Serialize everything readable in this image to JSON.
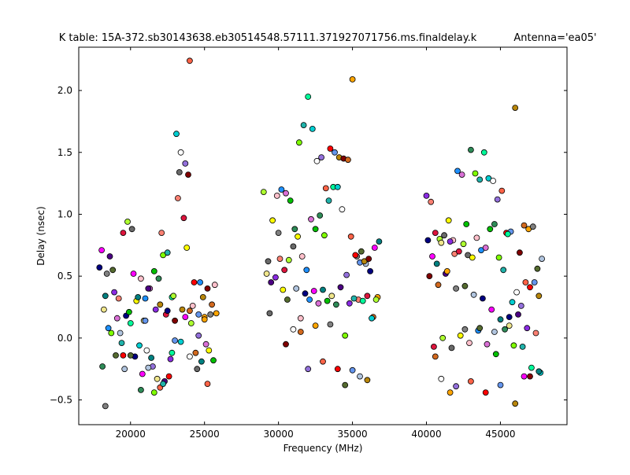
{
  "chart_data": {
    "type": "scatter",
    "title": "K table: 15A-372.sb30143638.eb30514548.57111.371927071756.ms.finaldelay.k",
    "title_right": "Antenna='ea05'",
    "xlabel": "Frequency (MHz)",
    "ylabel": "Delay (nsec)",
    "xlim": [
      16500,
      49500
    ],
    "ylim": [
      -0.7,
      2.35
    ],
    "x_ticks": [
      20000,
      25000,
      30000,
      35000,
      40000,
      45000
    ],
    "x_tick_labels": [
      "20000",
      "25000",
      "30000",
      "35000",
      "40000",
      "45000"
    ],
    "y_ticks": [
      -0.5,
      0.0,
      0.5,
      1.0,
      1.5,
      2.0
    ],
    "y_tick_labels": [
      "−0.5",
      "0.0",
      "0.5",
      "1.0",
      "1.5",
      "2.0"
    ],
    "grid": false,
    "legend": "none",
    "marker": "circle",
    "marker_edge_color": "#000000",
    "palette": [
      "#000080",
      "#ff0000",
      "#00c000",
      "#8a2be2",
      "#ffa500",
      "#00ced1",
      "#ffff00",
      "#ff00ff",
      "#6495ed",
      "#2e8b57",
      "#fa8072",
      "#808080",
      "#ffffff",
      "#ffc0cb",
      "#008080",
      "#b8860b",
      "#7fff00",
      "#dc143c",
      "#556b2f",
      "#9370db",
      "#1e90ff",
      "#f0e68c",
      "#800000",
      "#20b2aa",
      "#adff2f",
      "#b0c4de",
      "#ff6347",
      "#da70d6",
      "#4b0082",
      "#d2691e",
      "#00fa9a",
      "#696969"
    ],
    "series": [
      {
        "x": [
          17900,
          18050,
          18300,
          18200,
          18600,
          18900,
          19200,
          19500,
          19800,
          20100,
          20400,
          20700,
          21000,
          21300,
          21600,
          21900,
          22200,
          22500,
          22800,
          23100,
          23400,
          23700,
          24000,
          24300,
          24600,
          24900,
          25200,
          25500,
          25800,
          18400,
          18800,
          19300,
          19700,
          20200,
          20500,
          20900,
          21200,
          21700,
          22100,
          22400,
          22900,
          23300,
          23800,
          24200,
          24700,
          25100,
          25600,
          18100,
          18700,
          19400,
          20000,
          20600,
          21100,
          21500,
          22000,
          22600,
          23000,
          23500,
          23900,
          24400,
          25000,
          25400,
          19000,
          19600,
          20300,
          20800,
          21400,
          21800,
          22300,
          22700,
          23200,
          23600,
          24100,
          24500,
          25300,
          25700,
          18500,
          19100,
          19900,
          20700,
          21600,
          22200,
          22800,
          23400,
          24000,
          24600,
          25200,
          19500,
          21000,
          22000,
          23000,
          24000,
          25000,
          18300,
          20000,
          21200,
          22500,
          23700,
          24800
        ],
        "y": [
          0.57,
          0.71,
          0.34,
          0.23,
          0.66,
          0.37,
          0.32,
          0.85,
          0.94,
          0.88,
          0.3,
          0.48,
          0.32,
          0.4,
          0.54,
          0.48,
          0.67,
          0.69,
          0.33,
          1.65,
          1.5,
          1.41,
          2.24,
          0.45,
          0.19,
          0.33,
          0.4,
          0.27,
          0.2,
          0.52,
          0.55,
          0.04,
          0.18,
          0.52,
          0.33,
          0.14,
          0.4,
          0.23,
          0.85,
          0.19,
          0.34,
          1.34,
          0.73,
          0.26,
          0.45,
          -0.05,
          -0.18,
          -0.23,
          0.04,
          -0.04,
          0.12,
          -0.06,
          -0.1,
          -0.23,
          -0.4,
          -0.31,
          -0.02,
          0.23,
          1.32,
          -0.12,
          0.17,
          0.19,
          -0.14,
          -0.25,
          -0.15,
          -0.29,
          -0.16,
          -0.33,
          -0.35,
          -0.17,
          1.13,
          0.97,
          0.12,
          -0.25,
          -0.1,
          0.43,
          0.08,
          0.16,
          0.21,
          -0.42,
          -0.44,
          -0.37,
          -0.12,
          -0.03,
          -0.15,
          0.02,
          -0.37,
          -0.14,
          0.14,
          0.27,
          0.14,
          0.22,
          0.15,
          -0.55,
          -0.14,
          -0.24,
          0.22,
          0.17,
          -0.19
        ]
      },
      {
        "x": [
          29000,
          29300,
          29600,
          29900,
          30200,
          30500,
          30800,
          31100,
          31400,
          31700,
          32000,
          32300,
          32600,
          32900,
          33200,
          33500,
          33800,
          34100,
          34400,
          34700,
          35000,
          35300,
          35600,
          35900,
          36200,
          36500,
          36800,
          29200,
          29500,
          29800,
          30100,
          30400,
          30700,
          31000,
          31300,
          31600,
          31900,
          32200,
          32500,
          32800,
          33100,
          33400,
          33700,
          34000,
          34300,
          34600,
          34900,
          35200,
          35500,
          35800,
          36100,
          36400,
          36700,
          30000,
          30600,
          31200,
          31800,
          32400,
          33000,
          33600,
          34200,
          34800,
          35400,
          36000,
          36600,
          29400,
          30300,
          31500,
          32100,
          32700,
          33300,
          33900,
          34500,
          35100,
          35700,
          36300,
          31000,
          32000,
          33000,
          34000,
          35000,
          36000,
          30500,
          31500,
          32500,
          33500,
          34500,
          35500
        ],
        "y": [
          1.18,
          0.62,
          0.95,
          1.15,
          1.2,
          1.17,
          1.11,
          0.88,
          1.58,
          1.72,
          1.95,
          1.69,
          1.43,
          1.46,
          1.21,
          1.53,
          1.5,
          1.46,
          1.45,
          1.44,
          2.09,
          0.66,
          0.7,
          0.6,
          0.54,
          0.73,
          0.78,
          0.52,
          0.45,
          0.49,
          0.64,
          0.55,
          0.63,
          0.74,
          0.82,
          0.66,
          0.55,
          0.96,
          0.88,
          0.99,
          0.83,
          1.11,
          1.22,
          1.22,
          1.04,
          0.51,
          0.82,
          0.67,
          0.61,
          0.62,
          0.64,
          0.17,
          0.33,
          0.85,
          0.31,
          0.4,
          0.36,
          0.38,
          0.39,
          0.34,
          0.41,
          0.28,
          0.31,
          0.34,
          0.31,
          0.2,
          0.39,
          0.16,
          0.31,
          0.28,
          0.3,
          0.27,
          0.02,
          0.32,
          0.3,
          0.16,
          0.07,
          -0.25,
          -0.19,
          -0.25,
          -0.26,
          -0.34,
          -0.05,
          0.05,
          0.1,
          0.11,
          -0.38,
          -0.31
        ]
      },
      {
        "x": [
          40000,
          40300,
          40600,
          40900,
          41200,
          41500,
          41800,
          42100,
          42400,
          42700,
          43000,
          43300,
          43600,
          43900,
          44200,
          44500,
          44800,
          45100,
          45400,
          45700,
          46000,
          46300,
          46600,
          46900,
          47200,
          47500,
          47800,
          40100,
          40400,
          40700,
          41000,
          41300,
          41600,
          41900,
          42200,
          42500,
          42800,
          43100,
          43400,
          43700,
          44000,
          44300,
          44600,
          44900,
          45200,
          45500,
          45800,
          46100,
          46400,
          46700,
          47000,
          47300,
          47600,
          40200,
          40800,
          41400,
          42000,
          42600,
          43200,
          43800,
          44400,
          45000,
          45600,
          46200,
          46800,
          47400,
          40500,
          41100,
          41700,
          42300,
          42900,
          43500,
          44100,
          44700,
          45300,
          45900,
          46500,
          47100,
          47700,
          41000,
          42000,
          43000,
          44000,
          45000,
          46000,
          47000,
          40600,
          41600,
          42600,
          43600,
          44600,
          45600,
          46600,
          47600
        ],
        "y": [
          1.15,
          1.1,
          0.85,
          0.8,
          0.83,
          0.95,
          0.79,
          1.35,
          1.32,
          0.92,
          1.52,
          1.33,
          1.28,
          1.5,
          1.29,
          1.27,
          1.12,
          1.19,
          0.85,
          0.86,
          1.86,
          0.69,
          0.91,
          0.88,
          0.9,
          0.56,
          0.64,
          0.79,
          0.66,
          0.6,
          0.77,
          0.52,
          0.78,
          0.68,
          0.7,
          0.76,
          0.67,
          0.65,
          0.81,
          0.71,
          0.73,
          0.88,
          0.92,
          0.65,
          0.55,
          0.84,
          0.29,
          0.37,
          0.26,
          0.45,
          0.41,
          0.45,
          0.34,
          0.5,
          0.43,
          0.54,
          0.4,
          0.42,
          0.35,
          0.32,
          0.23,
          0.15,
          0.1,
          0.19,
          0.08,
          0.04,
          -0.07,
          0.0,
          -0.08,
          0.02,
          -0.04,
          0.06,
          -0.05,
          -0.13,
          0.07,
          -0.06,
          -0.07,
          -0.24,
          -0.28,
          -0.33,
          -0.39,
          -0.35,
          -0.44,
          -0.38,
          -0.53,
          -0.31,
          -0.15,
          -0.44,
          0.07,
          0.08,
          0.05,
          0.17,
          -0.31,
          -0.27
        ]
      }
    ]
  }
}
